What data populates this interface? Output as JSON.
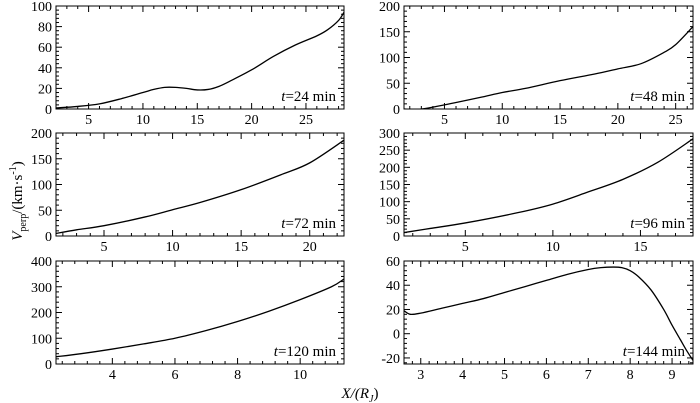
{
  "figure": {
    "ylabel_main": "V",
    "ylabel_sub": "perp",
    "ylabel_unit": "/(km·s",
    "ylabel_sup": "-1",
    "ylabel_close": ")",
    "xlabel_main": "X/(R",
    "xlabel_sub": "J",
    "xlabel_close": ")"
  },
  "chart_data": [
    {
      "type": "line",
      "label_var": "t",
      "label_text": "=24 min",
      "xlim": [
        2,
        28.5
      ],
      "ylim": [
        0,
        100
      ],
      "xticks": [
        5,
        10,
        15,
        20,
        25
      ],
      "yticks": [
        0,
        20,
        40,
        60,
        80,
        100
      ],
      "x": [
        2,
        4,
        6,
        8,
        10,
        11,
        12,
        13,
        14,
        15,
        16,
        17,
        18,
        20,
        22,
        24,
        26,
        27,
        28,
        28.5
      ],
      "y": [
        1,
        2.5,
        5,
        10,
        16,
        19,
        21,
        21,
        20,
        18.5,
        19,
        22,
        27,
        38,
        51,
        62,
        71,
        77,
        86,
        94
      ]
    },
    {
      "type": "line",
      "label_var": "t",
      "label_text": "=48 min",
      "xlim": [
        1.5,
        26.5
      ],
      "ylim": [
        0,
        200
      ],
      "xticks": [
        5,
        10,
        15,
        20,
        25
      ],
      "yticks": [
        0,
        50,
        100,
        150,
        200
      ],
      "x": [
        1.5,
        3,
        5,
        8,
        10,
        12,
        15,
        18,
        20,
        22,
        24,
        25,
        26.5
      ],
      "y": [
        0,
        0,
        8,
        22,
        32,
        40,
        55,
        68,
        78,
        88,
        110,
        125,
        160
      ]
    },
    {
      "type": "line",
      "label_var": "t",
      "label_text": "=72 min",
      "xlim": [
        1.5,
        22.5
      ],
      "ylim": [
        0,
        200
      ],
      "xticks": [
        5,
        10,
        15,
        20
      ],
      "yticks": [
        0,
        50,
        100,
        150,
        200
      ],
      "x": [
        1.5,
        3,
        5,
        8,
        10,
        12,
        15,
        18,
        20,
        22.5
      ],
      "y": [
        5,
        12,
        20,
        37,
        51,
        65,
        90,
        120,
        142,
        186
      ]
    },
    {
      "type": "line",
      "label_var": "t",
      "label_text": "=96 min",
      "xlim": [
        1.5,
        18
      ],
      "ylim": [
        0,
        300
      ],
      "xticks": [
        5,
        10,
        15
      ],
      "yticks": [
        0,
        50,
        100,
        150,
        200,
        250,
        300
      ],
      "x": [
        1.5,
        3,
        5,
        8,
        10,
        12,
        14,
        16,
        18
      ],
      "y": [
        10,
        22,
        38,
        68,
        93,
        128,
        165,
        215,
        283
      ]
    },
    {
      "type": "line",
      "label_var": "t",
      "label_text": "=120 min",
      "xlim": [
        2.2,
        11.4
      ],
      "ylim": [
        0,
        400
      ],
      "xticks": [
        4,
        6,
        8,
        10
      ],
      "yticks": [
        0,
        100,
        200,
        300,
        400
      ],
      "x": [
        2.2,
        3,
        4,
        5,
        6,
        7,
        8,
        9,
        10,
        11,
        11.4
      ],
      "y": [
        28,
        40,
        58,
        78,
        100,
        130,
        165,
        205,
        250,
        300,
        330
      ]
    },
    {
      "type": "line",
      "label_var": "t",
      "label_text": "=144 min",
      "xlim": [
        2.6,
        9.5
      ],
      "ylim": [
        -25,
        60
      ],
      "xticks": [
        3,
        4,
        5,
        6,
        7,
        8,
        9
      ],
      "yticks": [
        -20,
        0,
        20,
        40,
        60
      ],
      "x": [
        2.6,
        2.75,
        3,
        3.5,
        4,
        4.5,
        5,
        5.5,
        6,
        6.5,
        7,
        7.3,
        7.6,
        7.8,
        8.0,
        8.2,
        8.5,
        8.8,
        9.0,
        9.2,
        9.35,
        9.5
      ],
      "y": [
        19,
        16,
        17,
        21,
        25,
        29,
        34,
        39,
        44,
        49,
        53,
        54.5,
        55,
        54.5,
        52,
        47,
        36,
        20,
        7,
        -5,
        -14,
        -22
      ]
    }
  ]
}
